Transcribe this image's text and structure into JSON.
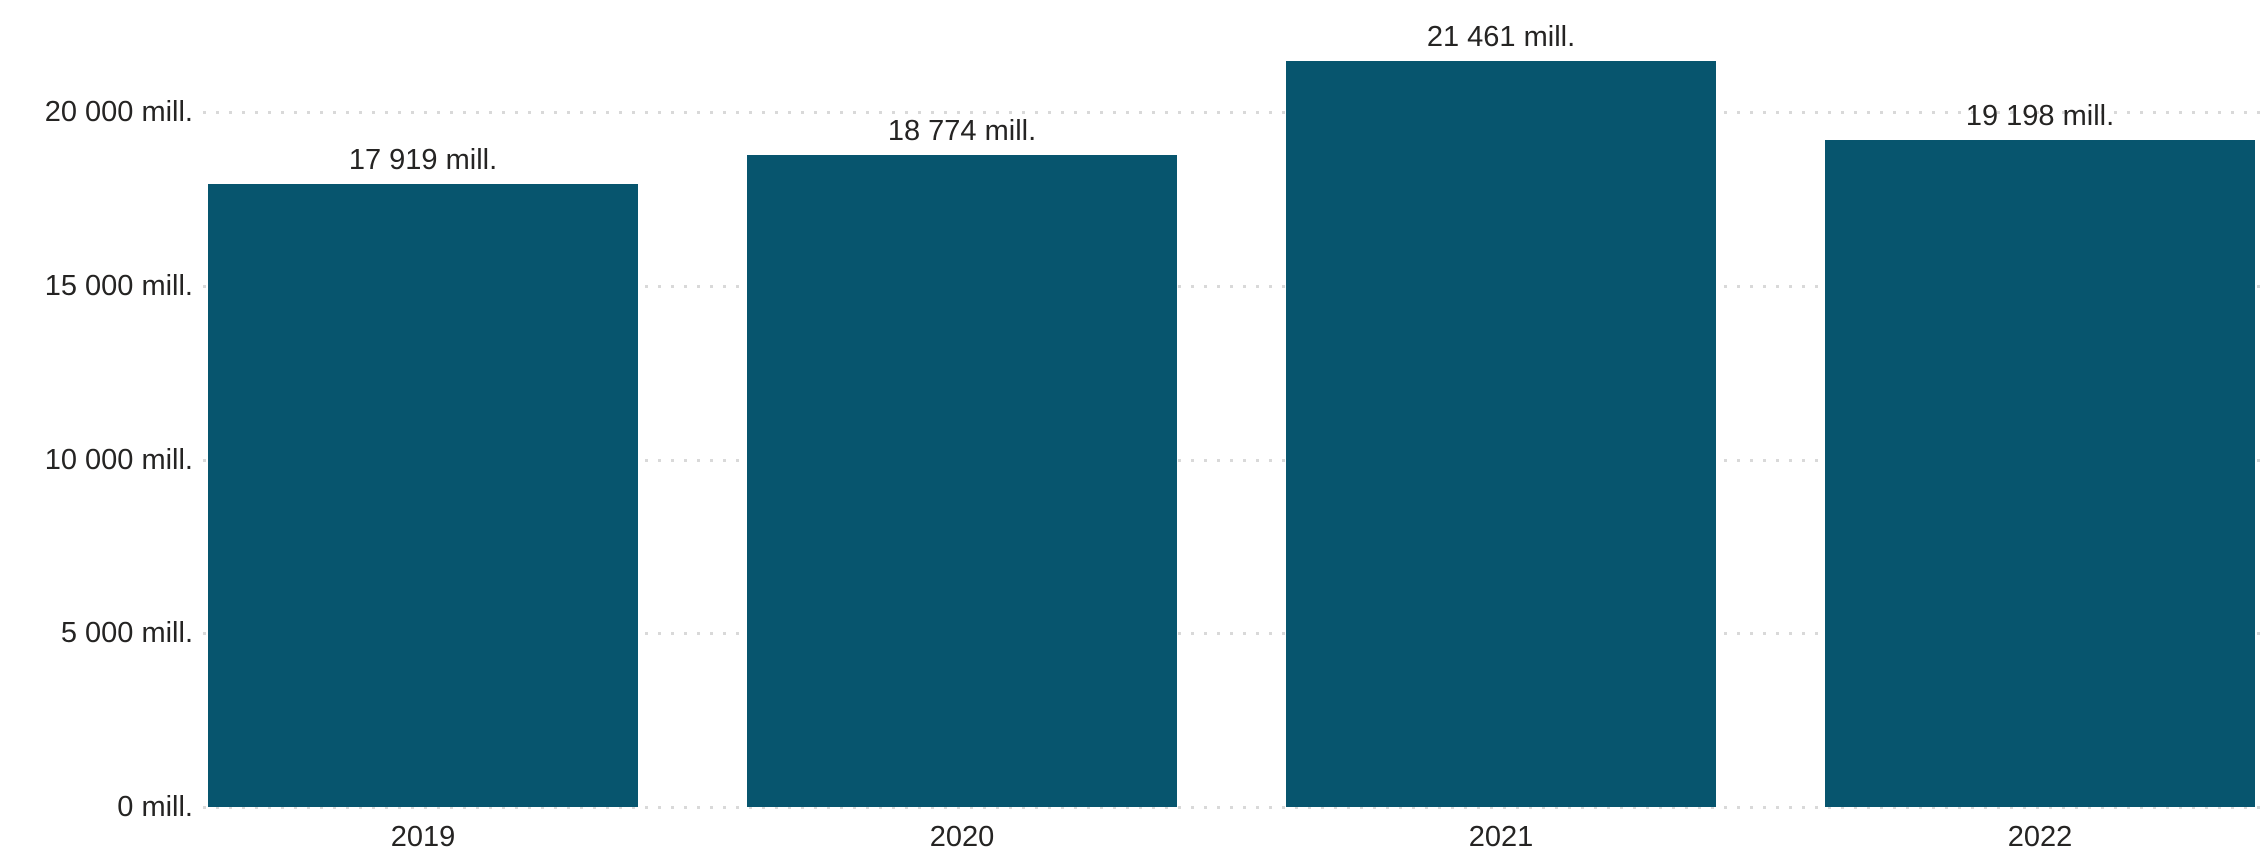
{
  "chart_data": {
    "type": "bar",
    "title": "",
    "unit": "mill.",
    "categories": [
      "2019",
      "2020",
      "2021",
      "2022"
    ],
    "values": [
      17919,
      18774,
      21461,
      19198
    ],
    "bar_labels": [
      "17 919 mill.",
      "18 774 mill.",
      "21 461 mill.",
      "19 198 mill."
    ],
    "y_ticks": [
      {
        "value": 0,
        "label": "0 mill."
      },
      {
        "value": 5000,
        "label": "5 000 mill."
      },
      {
        "value": 10000,
        "label": "10 000 mill."
      },
      {
        "value": 15000,
        "label": "15 000 mill."
      },
      {
        "value": 20000,
        "label": "20 000 mill."
      }
    ],
    "ylim": [
      0,
      23300
    ],
    "grid": true,
    "gridline_style": "dotted",
    "legend": false,
    "colors": {
      "bar": "#07556e",
      "gridline": "#d9d9d9",
      "text": "#252423",
      "background": "#ffffff"
    }
  }
}
